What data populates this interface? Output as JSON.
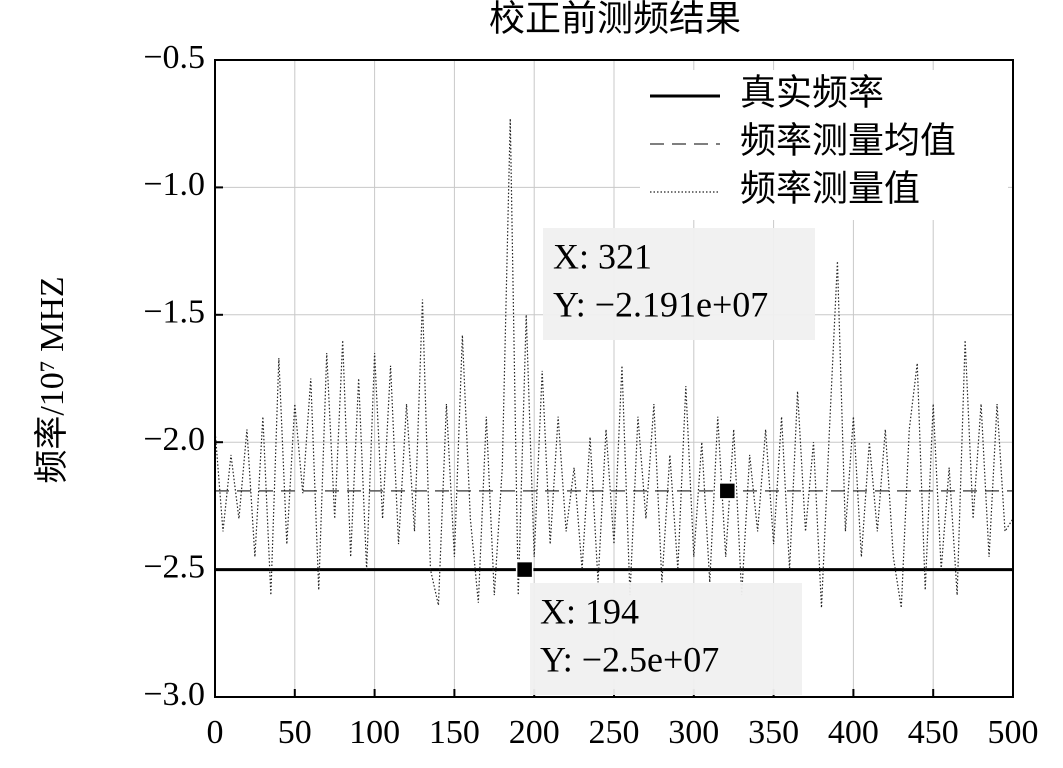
{
  "chart_data": {
    "type": "line",
    "title": "校正前测频结果",
    "ylabel": "频率/10⁷ MHZ",
    "xlim": [
      0,
      500
    ],
    "ylim": [
      -3.0,
      -0.5
    ],
    "xticks": [
      0,
      50,
      100,
      150,
      200,
      250,
      300,
      350,
      400,
      450,
      500
    ],
    "yticks": [
      {
        "value": -0.5,
        "label": "−0.5"
      },
      {
        "value": -1.0,
        "label": "−1.0"
      },
      {
        "value": -1.5,
        "label": "−1.5"
      },
      {
        "value": -2.0,
        "label": "−2.0"
      },
      {
        "value": -2.5,
        "label": "−2.5"
      },
      {
        "value": -3.0,
        "label": "−3.0"
      }
    ],
    "grid": true,
    "legend": "upper right",
    "series": [
      {
        "name": "真实频率",
        "color": "#000000",
        "dash": "solid",
        "x": [
          0,
          500
        ],
        "values": [
          -2.5,
          -2.5
        ]
      },
      {
        "name": "频率测量均值",
        "color": "#555555",
        "dash": "dashed",
        "x": [
          0,
          500
        ],
        "values": [
          -2.191,
          -2.191
        ]
      },
      {
        "name": "频率测量值",
        "color": "#222222",
        "dash": "dotted",
        "x": [
          0,
          5,
          10,
          15,
          20,
          25,
          30,
          35,
          40,
          45,
          50,
          55,
          60,
          65,
          70,
          75,
          80,
          85,
          90,
          95,
          100,
          105,
          110,
          115,
          120,
          125,
          130,
          135,
          140,
          145,
          150,
          155,
          160,
          165,
          170,
          175,
          180,
          185,
          190,
          195,
          200,
          205,
          210,
          215,
          220,
          225,
          230,
          235,
          240,
          245,
          250,
          255,
          260,
          265,
          270,
          275,
          280,
          285,
          290,
          295,
          300,
          305,
          310,
          315,
          320,
          325,
          330,
          335,
          340,
          345,
          350,
          355,
          360,
          365,
          370,
          375,
          380,
          385,
          390,
          395,
          400,
          405,
          410,
          415,
          420,
          425,
          430,
          435,
          440,
          445,
          450,
          455,
          460,
          465,
          470,
          475,
          480,
          485,
          490,
          495,
          500
        ],
        "values": [
          -1.95,
          -2.35,
          -2.05,
          -2.3,
          -1.95,
          -2.45,
          -1.9,
          -2.6,
          -1.67,
          -2.4,
          -1.85,
          -2.2,
          -1.75,
          -2.58,
          -1.65,
          -2.3,
          -1.6,
          -2.45,
          -1.75,
          -2.5,
          -1.65,
          -2.3,
          -1.7,
          -2.4,
          -1.85,
          -2.35,
          -1.44,
          -2.5,
          -2.64,
          -1.85,
          -2.45,
          -1.58,
          -2.3,
          -2.63,
          -1.9,
          -2.6,
          -2.1,
          -0.73,
          -2.6,
          -1.5,
          -2.45,
          -1.72,
          -2.4,
          -1.9,
          -2.35,
          -2.1,
          -2.5,
          -1.98,
          -2.55,
          -1.95,
          -2.4,
          -1.7,
          -2.6,
          -1.9,
          -2.3,
          -1.85,
          -2.55,
          -2.05,
          -2.5,
          -1.78,
          -2.45,
          -2.0,
          -2.55,
          -1.9,
          -2.45,
          -1.95,
          -2.6,
          -2.05,
          -2.35,
          -1.95,
          -2.4,
          -1.9,
          -2.5,
          -1.8,
          -2.35,
          -2.0,
          -2.65,
          -1.95,
          -1.29,
          -2.35,
          -1.9,
          -2.45,
          -2.0,
          -2.35,
          -1.95,
          -2.45,
          -2.65,
          -1.95,
          -1.69,
          -2.58,
          -1.85,
          -2.5,
          -2.1,
          -2.6,
          -1.6,
          -2.3,
          -1.85,
          -2.45,
          -1.85,
          -2.35,
          -2.3
        ]
      }
    ],
    "annotations": [
      {
        "x": 321,
        "y": -2.191,
        "lines": [
          "X: 321",
          "Y: −2.191e+07"
        ]
      },
      {
        "x": 194,
        "y": -2.5,
        "lines": [
          "X: 194",
          "Y: −2.5e+07"
        ]
      }
    ]
  }
}
